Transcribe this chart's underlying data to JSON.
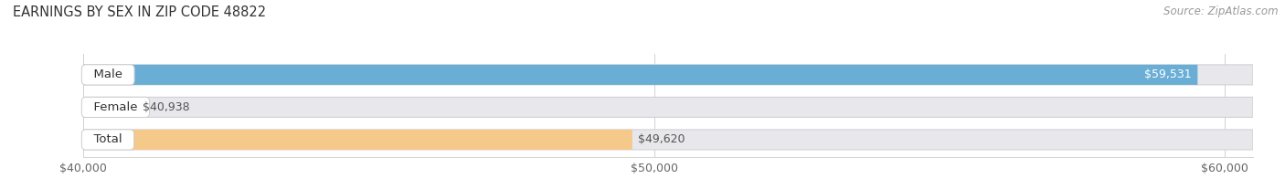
{
  "title": "EARNINGS BY SEX IN ZIP CODE 48822",
  "source": "Source: ZipAtlas.com",
  "categories": [
    "Male",
    "Female",
    "Total"
  ],
  "values": [
    59531,
    40938,
    49620
  ],
  "bar_colors": [
    "#6aaed6",
    "#f4a0b8",
    "#f5c98a"
  ],
  "bar_bg_color": "#e8e8ec",
  "xlim_min": 40000,
  "xlim_max": 60500,
  "xticks": [
    40000,
    50000,
    60000
  ],
  "xtick_labels": [
    "$40,000",
    "$50,000",
    "$60,000"
  ],
  "background_color": "#ffffff",
  "title_fontsize": 10.5,
  "source_fontsize": 8.5,
  "tick_fontsize": 9,
  "label_fontsize": 9,
  "category_fontsize": 9.5
}
